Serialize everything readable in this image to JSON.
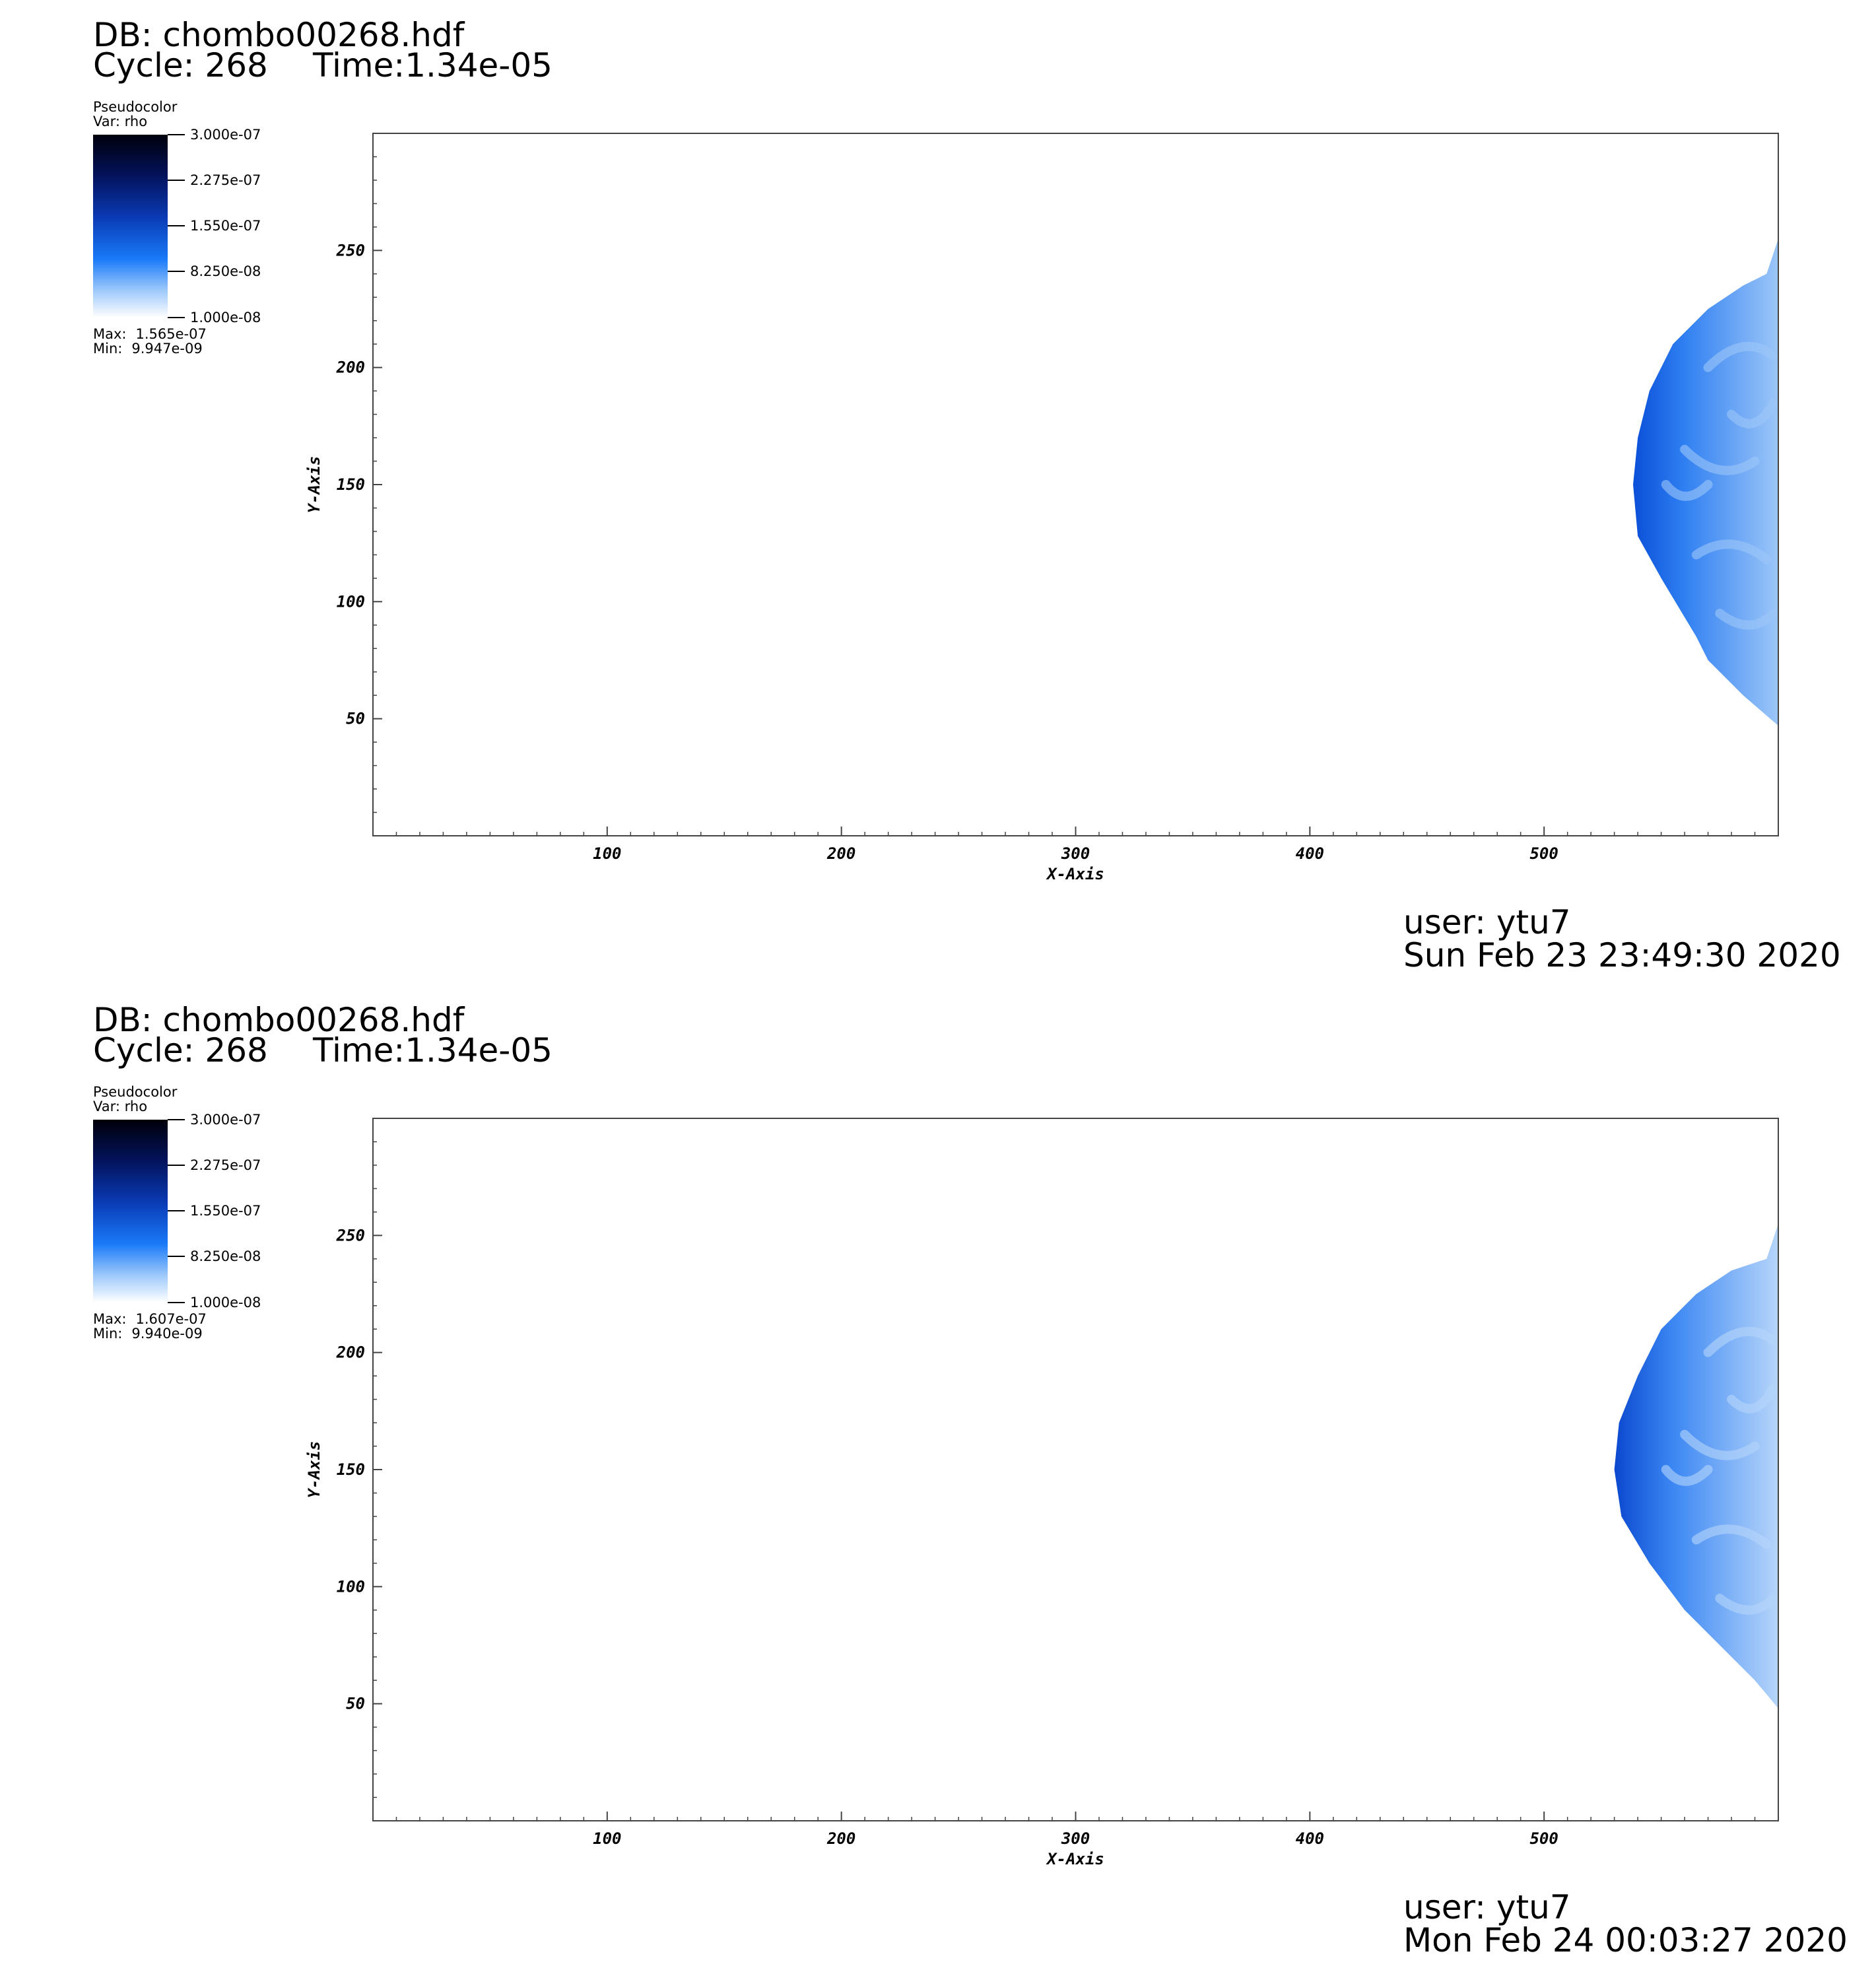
{
  "panels": [
    {
      "db": "DB: chombo00268.hdf",
      "cycle": "Cycle: 268",
      "time": "Time:1.34e-05",
      "legend": {
        "title": "Pseudocolor",
        "var": "Var: rho",
        "labels": [
          "3.000e-07",
          "2.275e-07",
          "1.550e-07",
          "8.250e-08",
          "1.000e-08"
        ],
        "max_label": "Max:",
        "max_value": "1.565e-07",
        "min_label": "Min:",
        "min_value": "9.947e-09"
      },
      "footer_user": "user: ytu7",
      "footer_date": "Sun Feb 23 23:49:30 2020"
    },
    {
      "db": "DB: chombo00268.hdf",
      "cycle": "Cycle: 268",
      "time": "Time:1.34e-05",
      "legend": {
        "title": "Pseudocolor",
        "var": "Var: rho",
        "labels": [
          "3.000e-07",
          "2.275e-07",
          "1.550e-07",
          "8.250e-08",
          "1.000e-08"
        ],
        "max_label": "Max:",
        "max_value": "1.607e-07",
        "min_label": "Min:",
        "min_value": "9.940e-09"
      },
      "footer_user": "user: ytu7",
      "footer_date": "Mon Feb 24 00:03:27 2020"
    }
  ],
  "chart_data": [
    {
      "type": "heatmap",
      "title": "",
      "xlabel": "X-Axis",
      "ylabel": "Y-Axis",
      "xlim": [
        0,
        600
      ],
      "ylim": [
        0,
        300
      ],
      "xticks": [
        100,
        200,
        300,
        400,
        500
      ],
      "yticks": [
        50,
        100,
        150,
        200,
        250
      ],
      "variable": "rho",
      "colorbar_range": [
        1e-08,
        3e-07
      ],
      "front": {
        "x": [
          600,
          595,
          585,
          570,
          555,
          545,
          540,
          538,
          540,
          550,
          565,
          570,
          585,
          600
        ],
        "y": [
          255,
          240,
          235,
          225,
          210,
          190,
          170,
          150,
          128,
          110,
          85,
          75,
          60,
          47
        ]
      },
      "colors": {
        "dark": "#0a4fd8",
        "mid": "#2f7ff2",
        "light": "#9cc6f8"
      }
    },
    {
      "type": "heatmap",
      "title": "",
      "xlabel": "X-Axis",
      "ylabel": "Y-Axis",
      "xlim": [
        0,
        600
      ],
      "ylim": [
        0,
        300
      ],
      "xticks": [
        100,
        200,
        300,
        400,
        500
      ],
      "yticks": [
        50,
        100,
        150,
        200,
        250
      ],
      "variable": "rho",
      "colorbar_range": [
        1e-08,
        3e-07
      ],
      "front": {
        "x": [
          600,
          595,
          580,
          565,
          550,
          540,
          532,
          530,
          533,
          545,
          560,
          575,
          590,
          600
        ],
        "y": [
          255,
          240,
          235,
          225,
          210,
          190,
          170,
          150,
          130,
          110,
          90,
          75,
          60,
          48
        ]
      },
      "colors": {
        "dark": "#0b48cf",
        "mid": "#3a86f3",
        "light": "#b6d5fa"
      }
    }
  ]
}
